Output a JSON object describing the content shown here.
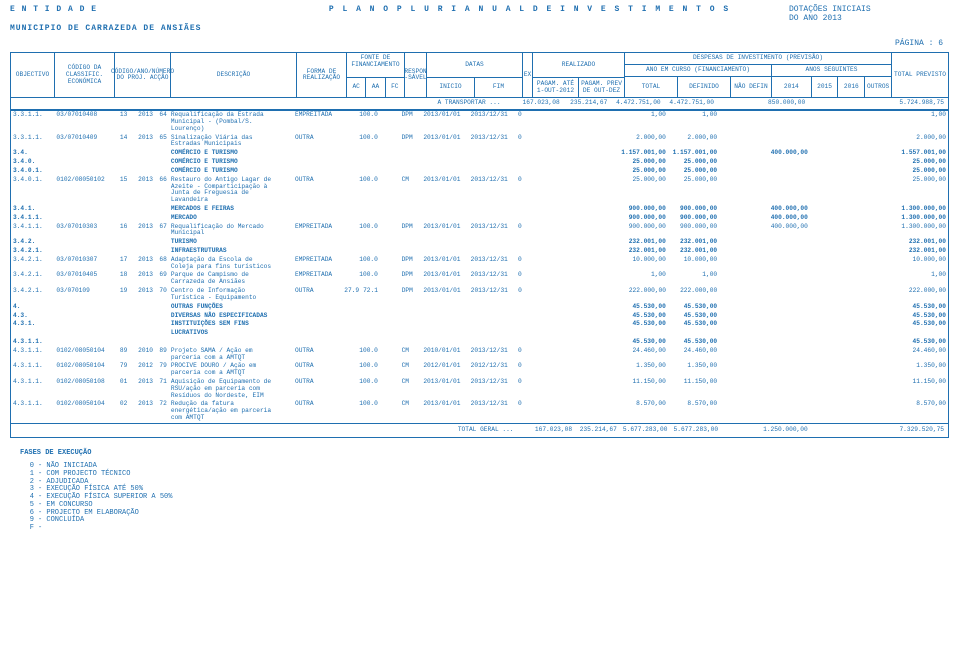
{
  "header": {
    "entity_label": "E N T I D A D E",
    "entity_name": "MUNICIPIO DE CARRAZEDA DE ANSIÃES",
    "title": "P L A N O   P L U R I A N U A L   D E   I N V E S T I M E N T O S",
    "dotacoes": "DOTAÇÕES INICIAIS",
    "ano": "DO ANO   2013",
    "pagina": "PÁGINA :  6"
  },
  "colors": {
    "text": "#1f6fb0",
    "border": "#1f6fb0",
    "background": "#ffffff"
  },
  "col_headers": {
    "objectivo": "OBJECTIVO",
    "codigo_da": "CÓDIGO\nDA\nCLASSIFIC.\nECONÓMICA",
    "codigo_ano": "CÓDIGO/ANO/NÚMERO\nDO\nPROJ.\nACÇÃO",
    "descricao": "DESCRIÇÃO",
    "forma": "FORMA\nDE\nREALIZAÇÃO",
    "fonte": "FONTE DE\nFINANCIAMENTO",
    "ac": "AC",
    "aa": "AA",
    "fc": "FC",
    "respon": "RESPON\n-SÁVEL",
    "datas": "DATAS",
    "inicio": "INICIO",
    "fim": "FIM",
    "ex": "EX",
    "realizado": "REALIZADO",
    "pagam_ate": "PAGAM. ATÉ\n1-OUT-2012",
    "pagam_prev": "PAGAM. PREV\nDE OUT-DEZ",
    "despesas": "DESPESAS DE INVESTIMENTO (PREVISÃO)",
    "ano_curso": "ANO EM CURSO (FINANCIAMENTO)",
    "total": "TOTAL",
    "definido": "DEFINIDO",
    "nao_defin": "NÃO DEFIN",
    "anos_seguintes": "ANOS SEGUINTES",
    "a2014": "2014",
    "a2015": "2015",
    "a2016": "2016",
    "outros": "OUTROS",
    "total_previsto": "TOTAL\nPREVISTO"
  },
  "transport": {
    "label": "A TRANSPORTAR ...",
    "v1": "167.023,08",
    "v2": "235.214,67",
    "t": "4.472.751,00",
    "d": "4.472.751,00",
    "y14": "850.000,00",
    "tot": "5.724.988,75"
  },
  "rows": [
    {
      "obj": "3.3.1.1.",
      "code": "03/07010408",
      "a": "13",
      "b": "2013",
      "c": "64",
      "desc": "Requalificação da Estrada\nMunicipal - (Pombal/S.\nLourenço)",
      "forma": "EMPREITADA",
      "aa": "100.0",
      "resp": "DPM",
      "ini": "2013/01/01",
      "fim": "2013/12/31",
      "ex": "0",
      "t": "1,00",
      "d": "1,00",
      "tot": "1,00"
    },
    {
      "obj": "3.3.1.1.",
      "code": "03/07010409",
      "a": "14",
      "b": "2013",
      "c": "65",
      "desc": "Sinalização Viária das\nEstradas Municipais",
      "forma": "OUTRA",
      "aa": "100.0",
      "resp": "DPM",
      "ini": "2013/01/01",
      "fim": "2013/12/31",
      "ex": "0",
      "t": "2.000,00",
      "d": "2.000,00",
      "tot": "2.000,00"
    },
    {
      "obj": "3.4.",
      "desc": "COMÉRCIO E TURISMO",
      "bold": true,
      "t": "1.157.001,00",
      "d": "1.157.001,00",
      "y14": "400.000,00",
      "tot": "1.557.001,00"
    },
    {
      "obj": "3.4.0.",
      "desc": "COMÉRCIO E TURISMO",
      "bold": true,
      "t": "25.000,00",
      "d": "25.000,00",
      "tot": "25.000,00"
    },
    {
      "obj": "3.4.0.1.",
      "desc": "COMÉRCIO E TURISMO",
      "bold": true,
      "t": "25.000,00",
      "d": "25.000,00",
      "tot": "25.000,00"
    },
    {
      "obj": "3.4.0.1.",
      "code": "0102/08050102",
      "a": "15",
      "b": "2013",
      "c": "66",
      "desc": "Restauro do Antigo Lagar de\nAzeite - Comparticipação à\nJunta de Freguesia de\nLavandeira",
      "forma": "OUTRA",
      "aa": "100.0",
      "resp": "CM",
      "ini": "2013/01/01",
      "fim": "2013/12/31",
      "ex": "0",
      "t": "25.000,00",
      "d": "25.000,00",
      "tot": "25.000,00"
    },
    {
      "obj": "3.4.1.",
      "desc": "MERCADOS E FEIRAS",
      "bold": true,
      "t": "900.000,00",
      "d": "900.000,00",
      "y14": "400.000,00",
      "tot": "1.300.000,00"
    },
    {
      "obj": "3.4.1.1.",
      "desc": "MERCADO",
      "bold": true,
      "t": "900.000,00",
      "d": "900.000,00",
      "y14": "400.000,00",
      "tot": "1.300.000,00"
    },
    {
      "obj": "3.4.1.1.",
      "code": "03/07010303",
      "a": "16",
      "b": "2013",
      "c": "67",
      "desc": "Requalificação do Mercado\nMunicipal",
      "forma": "EMPREITADA",
      "aa": "100.0",
      "resp": "DPM",
      "ini": "2013/01/01",
      "fim": "2013/12/31",
      "ex": "0",
      "t": "900.000,00",
      "d": "900.000,00",
      "y14": "400.000,00",
      "tot": "1.300.000,00"
    },
    {
      "obj": "3.4.2.",
      "desc": "TURISMO",
      "bold": true,
      "t": "232.001,00",
      "d": "232.001,00",
      "tot": "232.001,00"
    },
    {
      "obj": "3.4.2.1.",
      "desc": "INFRAESTRUTURAS",
      "bold": true,
      "t": "232.001,00",
      "d": "232.001,00",
      "tot": "232.001,00"
    },
    {
      "obj": "3.4.2.1.",
      "code": "03/07010307",
      "a": "17",
      "b": "2013",
      "c": "68",
      "desc": "Adaptação da Escola de\nColeja para fins turísticos",
      "forma": "EMPREITADA",
      "aa": "100.0",
      "resp": "DPM",
      "ini": "2013/01/01",
      "fim": "2013/12/31",
      "ex": "0",
      "t": "10.000,00",
      "d": "10.000,00",
      "tot": "10.000,00"
    },
    {
      "obj": "3.4.2.1.",
      "code": "03/07010405",
      "a": "18",
      "b": "2013",
      "c": "69",
      "desc": "Parque de Campismo de\nCarrazeda de Ansiães",
      "forma": "EMPREITADA",
      "aa": "100.0",
      "resp": "DPM",
      "ini": "2013/01/01",
      "fim": "2013/12/31",
      "ex": "0",
      "t": "1,00",
      "d": "1,00",
      "tot": "1,00"
    },
    {
      "obj": "3.4.2.1.",
      "code": "03/070109",
      "a": "19",
      "b": "2013",
      "c": "70",
      "desc": "Centro de Informação\nTurística - Equipamento",
      "forma": "OUTRA",
      "ac": "27.9",
      "aa": "72.1",
      "resp": "DPM",
      "ini": "2013/01/01",
      "fim": "2013/12/31",
      "ex": "0",
      "t": "222.000,00",
      "d": "222.000,00",
      "tot": "222.000,00"
    },
    {
      "obj": "4.",
      "desc": "OUTRAS FUNÇÕES",
      "bold": true,
      "t": "45.530,00",
      "d": "45.530,00",
      "tot": "45.530,00"
    },
    {
      "obj": "4.3.",
      "desc": "DIVERSAS NÃO ESPECIFICADAS",
      "bold": true,
      "t": "45.530,00",
      "d": "45.530,00",
      "tot": "45.530,00"
    },
    {
      "obj": "4.3.1.",
      "desc": "INSTITUIÇÕES SEM FINS",
      "bold": true,
      "t": "45.530,00",
      "d": "45.530,00",
      "tot": "45.530,00"
    },
    {
      "obj": "",
      "desc": "LUCRATIVOS",
      "bold": true
    },
    {
      "obj": "4.3.1.1.",
      "desc": "",
      "bold": true,
      "t": "45.530,00",
      "d": "45.530,00",
      "tot": "45.530,00"
    },
    {
      "obj": "4.3.1.1.",
      "code": "0102/08050104",
      "a": "89",
      "b": "2010",
      "c": "89",
      "desc": "Projeto SAMA / Ação em\nparceria com a AMTQT",
      "forma": "OUTRA",
      "aa": "100.0",
      "resp": "CM",
      "ini": "2010/01/01",
      "fim": "2013/12/31",
      "ex": "0",
      "t": "24.460,00",
      "d": "24.460,00",
      "tot": "24.460,00"
    },
    {
      "obj": "4.3.1.1.",
      "code": "0102/08050104",
      "a": "79",
      "b": "2012",
      "c": "79",
      "desc": "PROCIVE DOURO / Ação em\nparceria com a AMTQT",
      "forma": "OUTRA",
      "aa": "100.0",
      "resp": "CM",
      "ini": "2012/01/01",
      "fim": "2012/12/31",
      "ex": "0",
      "t": "1.350,00",
      "d": "1.350,00",
      "tot": "1.350,00"
    },
    {
      "obj": "4.3.1.1.",
      "code": "0102/08050108",
      "a": "01",
      "b": "2013",
      "c": "71",
      "desc": "Aquisição de Equipamento de\nRSU/ação em parceria com\nResíduos do Nordeste, EIM",
      "forma": "OUTRA",
      "aa": "100.0",
      "resp": "CM",
      "ini": "2013/01/01",
      "fim": "2013/12/31",
      "ex": "0",
      "t": "11.150,00",
      "d": "11.150,00",
      "tot": "11.150,00"
    },
    {
      "obj": "4.3.1.1.",
      "code": "0102/08050104",
      "a": "02",
      "b": "2013",
      "c": "72",
      "desc": "Redução da fatura\nenergética/ação em parceria\ncom AMTQT",
      "forma": "OUTRA",
      "aa": "100.0",
      "resp": "CM",
      "ini": "2013/01/01",
      "fim": "2013/12/31",
      "ex": "0",
      "t": "8.570,00",
      "d": "8.570,00",
      "tot": "8.570,00"
    }
  ],
  "total_geral": {
    "label": "TOTAL GERAL ...",
    "v1": "167.023,08",
    "v2": "235.214,67",
    "t": "5.677.283,00",
    "d": "5.677.283,00",
    "y14": "1.250.000,00",
    "tot": "7.329.520,75"
  },
  "fases": {
    "title": "FASES DE EXECUÇÃO",
    "items": [
      {
        "n": "0",
        "t": "NÃO INICIADA"
      },
      {
        "n": "1",
        "t": "COM PROJECTO TÉCNICO"
      },
      {
        "n": "2",
        "t": "ADJUDICADA"
      },
      {
        "n": "3",
        "t": "EXECUÇÃO FÍSICA ATÉ 50%"
      },
      {
        "n": "4",
        "t": "EXECUÇÃO FÍSICA SUPERIOR A 50%"
      },
      {
        "n": "5",
        "t": "EM CONCURSO"
      },
      {
        "n": "6",
        "t": "PROJECTO EM ELABORAÇÃO"
      },
      {
        "n": "9",
        "t": "CONCLUÍDA"
      },
      {
        "n": "F",
        "t": ""
      }
    ]
  }
}
